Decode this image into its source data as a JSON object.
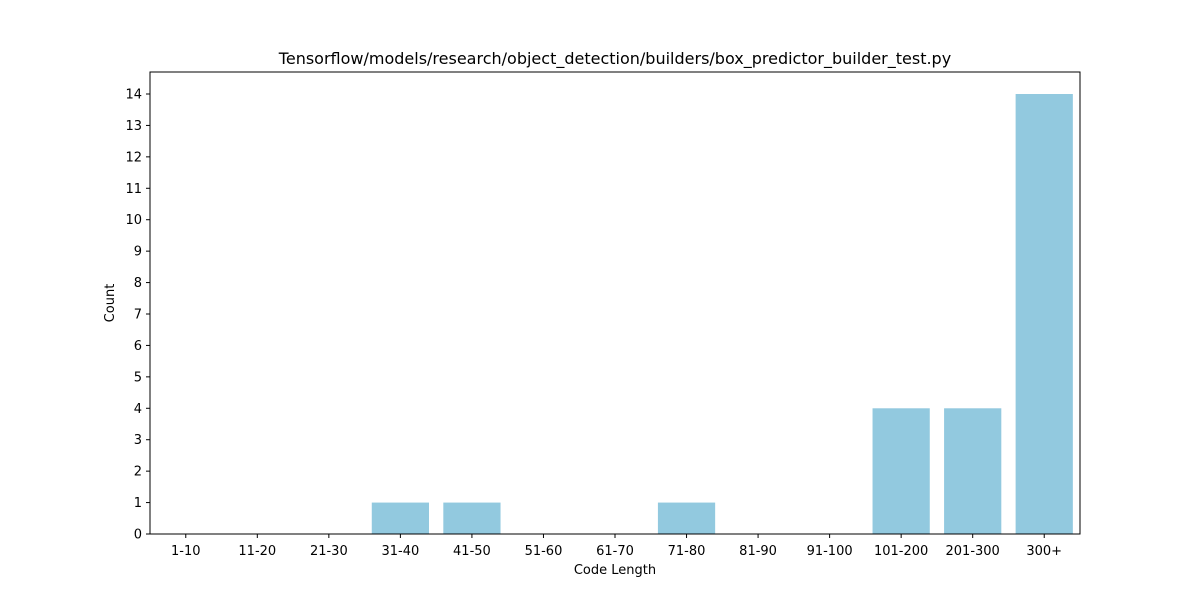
{
  "chart_data": {
    "type": "bar",
    "title": "Tensorflow/models/research/object_detection/builders/box_predictor_builder_test.py",
    "xlabel": "Code Length",
    "ylabel": "Count",
    "categories": [
      "1-10",
      "11-20",
      "21-30",
      "31-40",
      "41-50",
      "51-60",
      "61-70",
      "71-80",
      "81-90",
      "91-100",
      "101-200",
      "201-300",
      "300+"
    ],
    "values": [
      0,
      0,
      0,
      1,
      1,
      0,
      0,
      1,
      0,
      0,
      4,
      4,
      14
    ],
    "ylim": [
      0,
      14.7
    ],
    "yticks": [
      0,
      1,
      2,
      3,
      4,
      5,
      6,
      7,
      8,
      9,
      10,
      11,
      12,
      13,
      14
    ],
    "grid": false,
    "legend": false,
    "bar_color": "#92c9df"
  }
}
